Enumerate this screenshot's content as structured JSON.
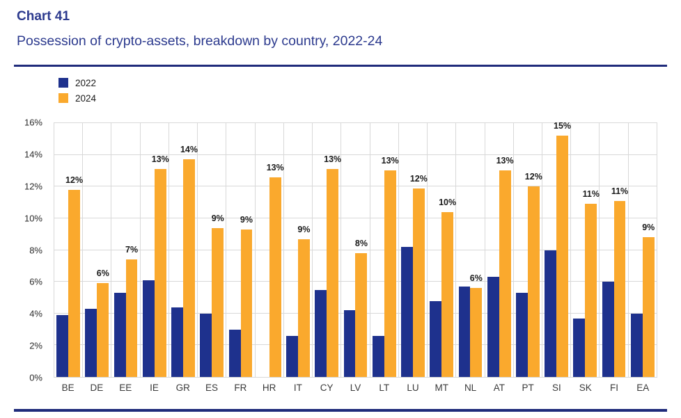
{
  "header": {
    "chart_label": "Chart 41",
    "title": "Possession of crypto-assets, breakdown by country, 2022-24"
  },
  "colors": {
    "heading_text": "#2c3a8e",
    "rule": "#1f2b7b",
    "grid": "#d8d8d8",
    "series_2022": "#1e318d",
    "series_2024": "#faa92d",
    "bar_label_text": "#1a1a1a"
  },
  "chart_data": {
    "type": "bar",
    "title": "Possession of crypto-assets, breakdown by country, 2022-24",
    "xlabel": "",
    "ylabel": "",
    "ylim": [
      0,
      16
    ],
    "ytick_labels": [
      "0%",
      "2%",
      "4%",
      "6%",
      "8%",
      "10%",
      "12%",
      "14%",
      "16%"
    ],
    "grid": true,
    "legend_position": "top-left",
    "categories": [
      "BE",
      "DE",
      "EE",
      "IE",
      "GR",
      "ES",
      "FR",
      "HR",
      "IT",
      "CY",
      "LV",
      "LT",
      "LU",
      "MT",
      "NL",
      "AT",
      "PT",
      "SI",
      "SK",
      "FI",
      "EA"
    ],
    "series": [
      {
        "name": "2022",
        "color": "#1e318d",
        "values": [
          3.9,
          4.3,
          5.3,
          6.1,
          4.4,
          4.0,
          3.0,
          null,
          2.6,
          5.5,
          4.2,
          2.6,
          8.2,
          4.8,
          5.7,
          6.3,
          5.3,
          8.0,
          3.7,
          6.0,
          4.0
        ]
      },
      {
        "name": "2024",
        "color": "#faa92d",
        "values": [
          11.8,
          5.9,
          7.4,
          13.1,
          13.7,
          9.4,
          9.3,
          12.6,
          8.7,
          13.1,
          7.8,
          13.0,
          11.9,
          10.4,
          5.6,
          13.0,
          12.0,
          15.2,
          10.9,
          11.1,
          8.8
        ],
        "labels": [
          "12%",
          "6%",
          "7%",
          "13%",
          "14%",
          "9%",
          "9%",
          "13%",
          "9%",
          "13%",
          "8%",
          "13%",
          "12%",
          "10%",
          "6%",
          "13%",
          "12%",
          "15%",
          "11%",
          "11%",
          "9%"
        ]
      }
    ]
  }
}
